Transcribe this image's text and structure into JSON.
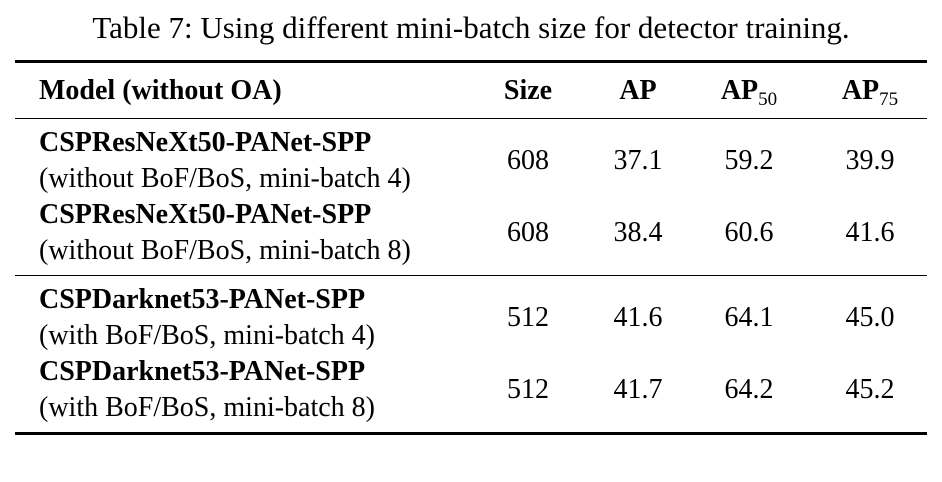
{
  "caption": "Table 7: Using different mini-batch size for detector training.",
  "columns": {
    "model": "Model (without OA)",
    "size": "Size",
    "ap": "AP",
    "ap50_base": "AP",
    "ap50_sub": "50",
    "ap75_base": "AP",
    "ap75_sub": "75"
  },
  "rows": [
    {
      "name": "CSPResNeXt50-PANet-SPP",
      "desc": "(without BoF/BoS, mini-batch 4)",
      "size": "608",
      "ap": "37.1",
      "ap50": "59.2",
      "ap75": "39.9"
    },
    {
      "name": "CSPResNeXt50-PANet-SPP",
      "desc": "(without BoF/BoS, mini-batch 8)",
      "size": "608",
      "ap": "38.4",
      "ap50": "60.6",
      "ap75": "41.6"
    },
    {
      "name": "CSPDarknet53-PANet-SPP",
      "desc": "(with BoF/BoS, mini-batch 4)",
      "size": "512",
      "ap": "41.6",
      "ap50": "64.1",
      "ap75": "45.0"
    },
    {
      "name": "CSPDarknet53-PANet-SPP",
      "desc": "(with BoF/BoS, mini-batch 8)",
      "size": "512",
      "ap": "41.7",
      "ap50": "64.2",
      "ap75": "45.2"
    }
  ]
}
